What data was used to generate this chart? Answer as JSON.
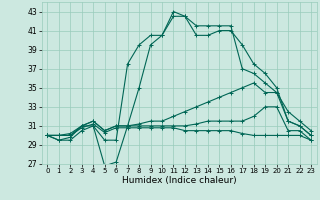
{
  "title": "",
  "xlabel": "Humidex (Indice chaleur)",
  "bg_color": "#cce8e0",
  "grid_color": "#99ccbb",
  "line_color": "#006655",
  "xlim": [
    -0.5,
    23.5
  ],
  "ylim": [
    27,
    44
  ],
  "yticks": [
    27,
    29,
    31,
    33,
    35,
    37,
    39,
    41,
    43
  ],
  "xticks": [
    0,
    1,
    2,
    3,
    4,
    5,
    6,
    7,
    8,
    9,
    10,
    11,
    12,
    13,
    14,
    15,
    16,
    17,
    18,
    19,
    20,
    21,
    22,
    23
  ],
  "series": [
    [
      30.0,
      29.5,
      29.5,
      30.5,
      31.0,
      26.8,
      27.2,
      31.0,
      35.0,
      39.5,
      40.5,
      43.0,
      42.5,
      40.5,
      40.5,
      41.0,
      41.0,
      39.5,
      37.5,
      36.5,
      35.0,
      31.5,
      31.0,
      30.0
    ],
    [
      30.0,
      29.5,
      29.8,
      31.0,
      31.0,
      29.5,
      29.5,
      37.5,
      39.5,
      40.5,
      40.5,
      42.5,
      42.5,
      41.5,
      41.5,
      41.5,
      41.5,
      37.0,
      36.5,
      35.5,
      34.5,
      32.5,
      31.5,
      30.5
    ],
    [
      30.0,
      30.0,
      30.2,
      31.0,
      31.5,
      30.5,
      31.0,
      31.0,
      31.2,
      31.5,
      31.5,
      32.0,
      32.5,
      33.0,
      33.5,
      34.0,
      34.5,
      35.0,
      35.5,
      34.5,
      34.5,
      31.5,
      31.0,
      30.0
    ],
    [
      30.0,
      30.0,
      30.0,
      31.0,
      31.5,
      30.5,
      31.0,
      31.0,
      31.0,
      31.0,
      31.0,
      31.0,
      31.0,
      31.2,
      31.5,
      31.5,
      31.5,
      31.5,
      32.0,
      33.0,
      33.0,
      30.5,
      30.5,
      29.5
    ],
    [
      30.0,
      30.0,
      30.0,
      30.8,
      31.2,
      30.3,
      30.8,
      30.8,
      30.8,
      30.8,
      30.8,
      30.8,
      30.5,
      30.5,
      30.5,
      30.5,
      30.5,
      30.2,
      30.0,
      30.0,
      30.0,
      30.0,
      30.0,
      29.5
    ]
  ],
  "marker": "+",
  "markersize": 3,
  "linewidth": 0.8
}
